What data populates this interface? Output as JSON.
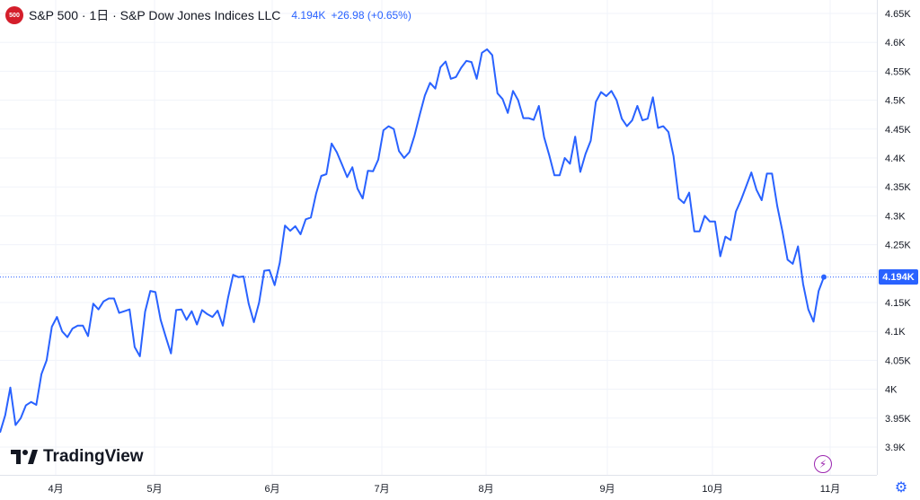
{
  "header": {
    "badge": "500",
    "title": "S&P 500 · 1日 · S&P Dow Jones Indices LLC",
    "last_value": "4.194K",
    "change": "+26.98 (+0.65%)"
  },
  "branding": {
    "logo_text": "TradingView",
    "logo_icon": "tradingview-logo-icon"
  },
  "last_price_label": "4.194K",
  "icons": {
    "bolt": "lightning-icon",
    "settings": "gear-icon"
  },
  "colors": {
    "line": "#2962ff",
    "badge": "#d41e2b",
    "bolt": "#9c27b0"
  },
  "chart_data": {
    "type": "line",
    "y_ticks": [
      "4.65K",
      "4.6K",
      "4.55K",
      "4.5K",
      "4.45K",
      "4.4K",
      "4.35K",
      "4.3K",
      "4.25K",
      "4.2K",
      "4.15K",
      "4.1K",
      "4.05K",
      "4K",
      "3.95K",
      "3.9K"
    ],
    "y_tick_values": [
      4650,
      4600,
      4550,
      4500,
      4450,
      4400,
      4350,
      4300,
      4250,
      4200,
      4150,
      4100,
      4050,
      4000,
      3950,
      3900
    ],
    "x_ticks": [
      "4月",
      "5月",
      "6月",
      "7月",
      "8月",
      "9月",
      "10月",
      "11月"
    ],
    "ylim": [
      3890,
      4660
    ],
    "grid": true,
    "series": [
      {
        "values": [
          3925,
          3955,
          4003,
          3938,
          3950,
          3972,
          3978,
          3973,
          4026,
          4050,
          4108,
          4125,
          4100,
          4090,
          4105,
          4110,
          4110,
          4092,
          4148,
          4138,
          4152,
          4157,
          4157,
          4132,
          4135,
          4138,
          4073,
          4057,
          4134,
          4170,
          4168,
          4120,
          4090,
          4062,
          4137,
          4138,
          4120,
          4135,
          4112,
          4137,
          4130,
          4125,
          4136,
          4110,
          4158,
          4198,
          4194,
          4195,
          4148,
          4116,
          4150,
          4205,
          4206,
          4180,
          4219,
          4283,
          4274,
          4282,
          4268,
          4294,
          4297,
          4338,
          4369,
          4372,
          4425,
          4410,
          4389,
          4367,
          4384,
          4347,
          4330,
          4378,
          4377,
          4397,
          4448,
          4455,
          4450,
          4412,
          4400,
          4410,
          4439,
          4475,
          4508,
          4530,
          4520,
          4557,
          4567,
          4537,
          4540,
          4556,
          4568,
          4566,
          4537,
          4582,
          4588,
          4578,
          4512,
          4502,
          4478,
          4516,
          4500,
          4469,
          4469,
          4466,
          4490,
          4436,
          4405,
          4370,
          4370,
          4400,
          4390,
          4437,
          4376,
          4407,
          4430,
          4497,
          4514,
          4507,
          4516,
          4500,
          4468,
          4455,
          4465,
          4490,
          4465,
          4468,
          4505,
          4452,
          4455,
          4445,
          4403,
          4330,
          4322,
          4340,
          4273,
          4273,
          4300,
          4290,
          4290,
          4230,
          4264,
          4258,
          4307,
          4327,
          4351,
          4375,
          4345,
          4327,
          4373,
          4373,
          4317,
          4273,
          4224,
          4217,
          4247,
          4182,
          4138,
          4117,
          4170,
          4194
        ]
      }
    ]
  }
}
